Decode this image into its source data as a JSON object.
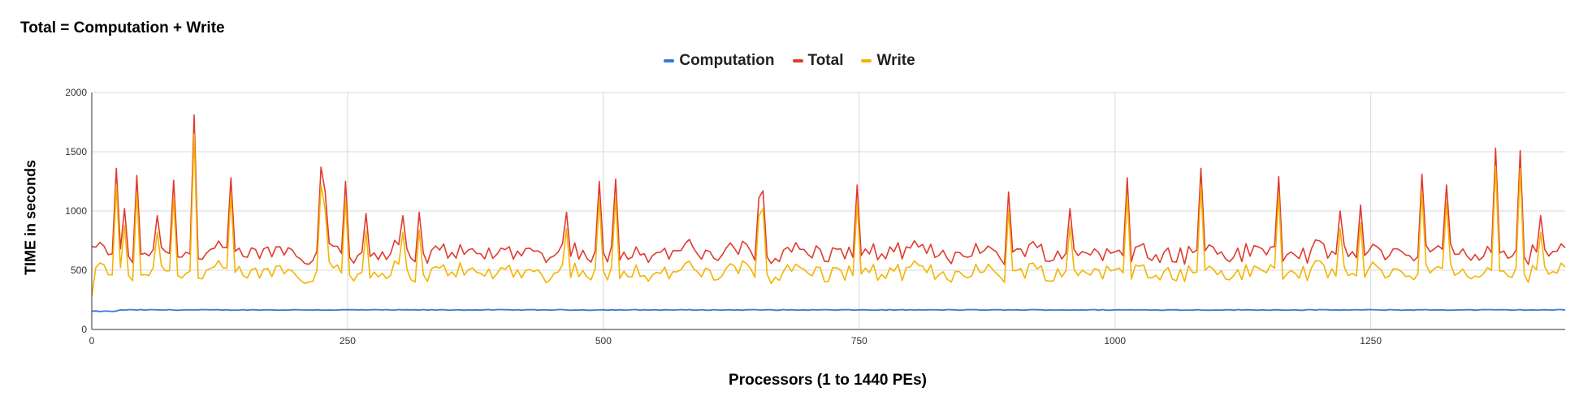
{
  "chart_data": {
    "type": "line",
    "title": "Total = Computation + Write",
    "xlabel": "Processors (1 to 1440 PEs)",
    "ylabel": "TIME in seconds",
    "xlim": [
      0,
      1440
    ],
    "ylim": [
      0,
      2000
    ],
    "x_ticks": [
      0,
      250,
      500,
      750,
      1000,
      1250
    ],
    "y_ticks": [
      0,
      500,
      1000,
      1500,
      2000
    ],
    "grid": true,
    "legend_position": "top-center",
    "sample_step": 4,
    "series": [
      {
        "name": "Computation",
        "color": "#3c78d8",
        "base": 165
      },
      {
        "name": "Total",
        "color": "#e03b2f",
        "base": 650
      },
      {
        "name": "Write",
        "color": "#f4b400",
        "base": 485
      }
    ],
    "spikes": [
      {
        "x": 23,
        "total": 1360,
        "write": 1220
      },
      {
        "x": 31,
        "total": 1020,
        "write": 880
      },
      {
        "x": 43,
        "total": 1300,
        "write": 1150
      },
      {
        "x": 64,
        "total": 960,
        "write": 820
      },
      {
        "x": 78,
        "total": 1260,
        "write": 1110
      },
      {
        "x": 100,
        "total": 1810,
        "write": 1650
      },
      {
        "x": 136,
        "total": 1280,
        "write": 1140
      },
      {
        "x": 224,
        "total": 1370,
        "write": 1220
      },
      {
        "x": 228,
        "total": 1170,
        "write": 1020
      },
      {
        "x": 247,
        "total": 1250,
        "write": 1100
      },
      {
        "x": 268,
        "total": 980,
        "write": 830
      },
      {
        "x": 303,
        "total": 960,
        "write": 820
      },
      {
        "x": 319,
        "total": 990,
        "write": 840
      },
      {
        "x": 464,
        "total": 990,
        "write": 850
      },
      {
        "x": 497,
        "total": 1250,
        "write": 1100
      },
      {
        "x": 510,
        "total": 1270,
        "write": 1110
      },
      {
        "x": 651,
        "total": 1110,
        "write": 960
      },
      {
        "x": 655,
        "total": 1170,
        "write": 1020
      },
      {
        "x": 749,
        "total": 1220,
        "write": 1070
      },
      {
        "x": 894,
        "total": 1160,
        "write": 1010
      },
      {
        "x": 954,
        "total": 1020,
        "write": 870
      },
      {
        "x": 1012,
        "total": 1280,
        "write": 1130
      },
      {
        "x": 1085,
        "total": 1360,
        "write": 1210
      },
      {
        "x": 1158,
        "total": 1290,
        "write": 1140
      },
      {
        "x": 1220,
        "total": 1000,
        "write": 850
      },
      {
        "x": 1240,
        "total": 1050,
        "write": 900
      },
      {
        "x": 1300,
        "total": 1310,
        "write": 1160
      },
      {
        "x": 1325,
        "total": 1220,
        "write": 1070
      },
      {
        "x": 1372,
        "total": 1530,
        "write": 1380
      },
      {
        "x": 1394,
        "total": 1510,
        "write": 1360
      },
      {
        "x": 1415,
        "total": 960,
        "write": 820
      }
    ]
  }
}
